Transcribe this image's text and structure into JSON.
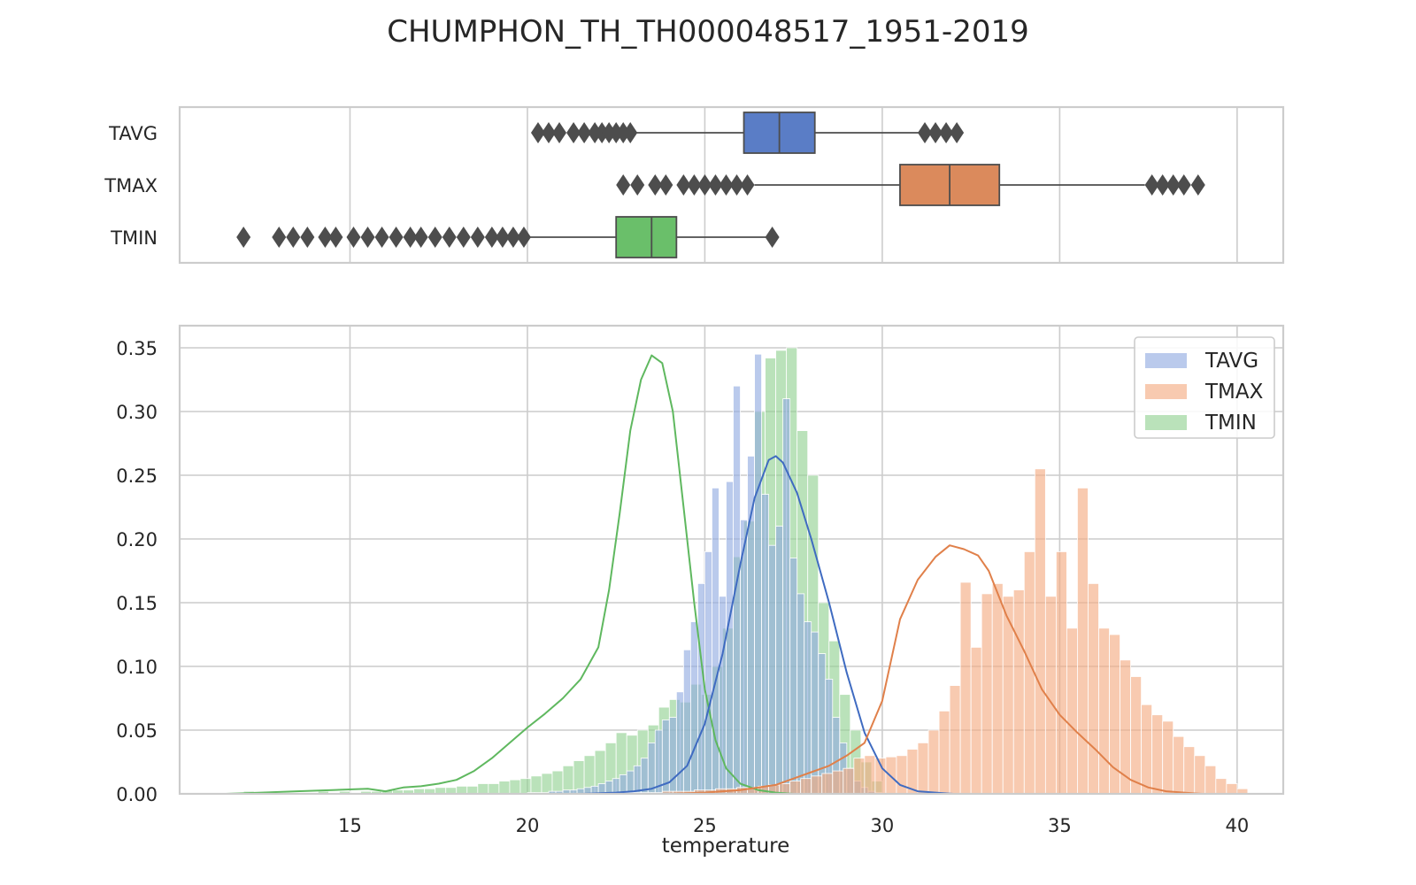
{
  "chart_data": [
    {
      "type": "box",
      "title": "CHUMPHON_TH_TH000048517_1951-2019",
      "orientation": "horizontal",
      "categories": [
        "TAVG",
        "TMAX",
        "TMIN"
      ],
      "colors": {
        "TAVG": "#5a7dc6",
        "TMAX": "#db8a5c",
        "TMIN": "#6abf6a"
      },
      "boxes": [
        {
          "name": "TAVG",
          "whisker_low": 23.0,
          "q1": 26.1,
          "median": 27.1,
          "q3": 28.1,
          "whisker_high": 31.1,
          "outliers": [
            20.3,
            20.6,
            20.9,
            21.3,
            21.6,
            21.9,
            22.1,
            22.3,
            22.5,
            22.7,
            22.9,
            31.2,
            31.5,
            31.8,
            32.1
          ]
        },
        {
          "name": "TMAX",
          "whisker_low": 26.4,
          "q1": 30.5,
          "median": 31.9,
          "q3": 33.3,
          "whisker_high": 37.4,
          "outliers": [
            22.7,
            23.1,
            23.6,
            23.9,
            24.4,
            24.7,
            25.0,
            25.3,
            25.6,
            25.9,
            26.2,
            37.6,
            37.9,
            38.2,
            38.5,
            38.9
          ]
        },
        {
          "name": "TMIN",
          "whisker_low": 20.0,
          "q1": 22.5,
          "median": 23.5,
          "q3": 24.2,
          "whisker_high": 26.8,
          "outliers": [
            12.0,
            13.0,
            13.4,
            13.8,
            14.3,
            14.6,
            15.1,
            15.5,
            15.9,
            16.3,
            16.7,
            17.0,
            17.4,
            17.8,
            18.2,
            18.6,
            19.0,
            19.3,
            19.6,
            19.9,
            26.9
          ]
        }
      ],
      "xlim": [
        10.2,
        41.3
      ],
      "xticks": [
        15,
        20,
        25,
        30,
        35,
        40
      ],
      "grid": true
    },
    {
      "type": "histogram",
      "xlabel": "temperature",
      "ylabel": "",
      "xlim": [
        10.2,
        41.3
      ],
      "ylim": [
        0,
        0.36
      ],
      "xticks": [
        15,
        20,
        25,
        30,
        35,
        40
      ],
      "yticks": [
        "0.00",
        "0.05",
        "0.10",
        "0.15",
        "0.20",
        "0.25",
        "0.30",
        "0.35"
      ],
      "grid": true,
      "legend": {
        "position": "top-right",
        "entries": [
          "TAVG",
          "TMAX",
          "TMIN"
        ]
      },
      "series": [
        {
          "name": "TMIN",
          "color": "#6abf6a",
          "hist_bin_edges_start": 12.0,
          "hist_bin_width": 0.3,
          "hist_values": [
            0.002,
            0,
            0,
            0,
            0,
            0,
            0,
            0.002,
            0,
            0.002,
            0,
            0.002,
            0.002,
            0.003,
            0.003,
            0.003,
            0.004,
            0.004,
            0.005,
            0.005,
            0.006,
            0.006,
            0.008,
            0.008,
            0.01,
            0.011,
            0.012,
            0.014,
            0.016,
            0.018,
            0.022,
            0.026,
            0.03,
            0.034,
            0.04,
            0.048,
            0.046,
            0.05,
            0.054,
            0.068,
            0.074,
            0.072,
            0.086,
            0.078,
            0.1,
            0.13,
            0.186,
            0.214,
            0.3,
            0.342,
            0.348,
            0.35,
            0.285,
            0.25,
            0.15,
            0.12,
            0.078,
            0.05,
            0.025,
            0.01
          ],
          "kde_x": [
            11.5,
            12.5,
            13.5,
            14.5,
            15.5,
            16.0,
            16.5,
            17.0,
            17.5,
            18.0,
            18.5,
            19.0,
            19.5,
            20.0,
            20.5,
            21.0,
            21.5,
            22.0,
            22.3,
            22.6,
            22.9,
            23.2,
            23.5,
            23.8,
            24.1,
            24.4,
            24.7,
            25.0,
            25.3,
            25.6,
            26.0,
            26.5,
            27.0,
            27.5,
            28.0
          ],
          "kde_y": [
            0.0,
            0.001,
            0.002,
            0.003,
            0.004,
            0.002,
            0.005,
            0.006,
            0.008,
            0.011,
            0.018,
            0.028,
            0.04,
            0.052,
            0.063,
            0.075,
            0.09,
            0.115,
            0.16,
            0.22,
            0.285,
            0.325,
            0.344,
            0.338,
            0.3,
            0.225,
            0.15,
            0.082,
            0.042,
            0.02,
            0.008,
            0.003,
            0.001,
            0.0,
            0.0
          ]
        },
        {
          "name": "TAVG",
          "color": "#5a7dc6",
          "hist_bin_edges_start": 20.0,
          "hist_bin_width": 0.2,
          "hist_values": [
            0.001,
            0.001,
            0.001,
            0.002,
            0.002,
            0.003,
            0.003,
            0.004,
            0.005,
            0.006,
            0.008,
            0.01,
            0.012,
            0.015,
            0.018,
            0.022,
            0.028,
            0.04,
            0.05,
            0.058,
            0.06,
            0.08,
            0.113,
            0.135,
            0.165,
            0.19,
            0.24,
            0.155,
            0.245,
            0.32,
            0.215,
            0.265,
            0.345,
            0.235,
            0.195,
            0.21,
            0.31,
            0.185,
            0.157,
            0.135,
            0.127,
            0.11,
            0.09,
            0.06,
            0.04,
            0.02,
            0.01,
            0.005,
            0.002,
            0.001
          ],
          "kde_x": [
            19.5,
            20.5,
            21.5,
            22.5,
            23.0,
            23.5,
            24.0,
            24.5,
            25.0,
            25.5,
            26.0,
            26.4,
            26.8,
            27.0,
            27.2,
            27.6,
            28.0,
            28.5,
            29.0,
            29.5,
            30.0,
            30.5,
            31.0,
            31.5,
            32.0,
            33.0
          ],
          "kde_y": [
            0.0,
            0.0,
            0.0,
            0.001,
            0.002,
            0.004,
            0.009,
            0.022,
            0.055,
            0.11,
            0.18,
            0.232,
            0.262,
            0.265,
            0.26,
            0.236,
            0.2,
            0.15,
            0.095,
            0.048,
            0.02,
            0.007,
            0.002,
            0.001,
            0.0,
            0.0
          ]
        },
        {
          "name": "TMAX",
          "color": "#f0a57a",
          "hist_bin_edges_start": 22.6,
          "hist_bin_width": 0.3,
          "hist_values": [
            0.001,
            0.001,
            0.001,
            0.001,
            0.002,
            0.002,
            0.002,
            0.003,
            0.003,
            0.004,
            0.004,
            0.005,
            0.005,
            0.006,
            0.007,
            0.008,
            0.01,
            0.012,
            0.014,
            0.016,
            0.018,
            0.02,
            0.028,
            0.03,
            0.028,
            0.029,
            0.03,
            0.035,
            0.04,
            0.05,
            0.065,
            0.085,
            0.166,
            0.115,
            0.157,
            0.165,
            0.155,
            0.16,
            0.19,
            0.255,
            0.155,
            0.19,
            0.13,
            0.24,
            0.165,
            0.13,
            0.125,
            0.105,
            0.092,
            0.07,
            0.062,
            0.057,
            0.045,
            0.037,
            0.03,
            0.022,
            0.012,
            0.008,
            0.004
          ],
          "kde_x": [
            22.0,
            24.0,
            25.0,
            26.0,
            27.0,
            27.5,
            28.0,
            28.5,
            29.0,
            29.5,
            30.0,
            30.5,
            31.0,
            31.5,
            31.9,
            32.3,
            32.7,
            33.0,
            33.5,
            34.0,
            34.5,
            35.0,
            35.5,
            36.0,
            36.5,
            37.0,
            37.5,
            38.0,
            38.5,
            39.0,
            40.0
          ],
          "kde_y": [
            0.0,
            0.0,
            0.001,
            0.003,
            0.007,
            0.012,
            0.017,
            0.022,
            0.03,
            0.04,
            0.073,
            0.137,
            0.168,
            0.186,
            0.195,
            0.192,
            0.187,
            0.175,
            0.14,
            0.112,
            0.082,
            0.062,
            0.048,
            0.035,
            0.021,
            0.011,
            0.005,
            0.002,
            0.001,
            0.0,
            0.0
          ]
        }
      ]
    }
  ]
}
